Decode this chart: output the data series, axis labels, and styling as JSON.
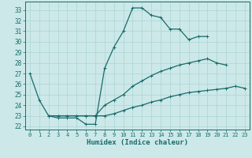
{
  "bg_color": "#cce8e8",
  "line_color": "#1a6b6b",
  "grid_color": "#aad4d4",
  "xlabel": "Humidex (Indice chaleur)",
  "xlim": [
    -0.5,
    23.5
  ],
  "ylim": [
    21.7,
    33.8
  ],
  "yticks": [
    22,
    23,
    24,
    25,
    26,
    27,
    28,
    29,
    30,
    31,
    32,
    33
  ],
  "xticks": [
    0,
    1,
    2,
    3,
    4,
    5,
    6,
    7,
    8,
    9,
    10,
    11,
    12,
    13,
    14,
    15,
    16,
    17,
    18,
    19,
    20,
    21,
    22,
    23
  ],
  "line1_x": [
    0,
    1,
    2,
    3,
    4,
    5,
    6,
    7,
    8,
    9,
    10,
    11,
    12,
    13,
    14,
    15,
    16,
    17,
    18,
    19
  ],
  "line1_y": [
    27.0,
    24.5,
    23.0,
    22.8,
    22.8,
    22.8,
    22.2,
    22.2,
    27.5,
    29.5,
    31.0,
    33.2,
    33.2,
    32.5,
    32.3,
    31.2,
    31.2,
    30.2,
    30.5,
    30.5
  ],
  "line2_x": [
    2,
    3,
    4,
    5,
    6,
    7,
    8,
    9,
    10,
    11,
    12,
    13,
    14,
    15,
    16,
    17,
    18,
    19,
    20,
    21,
    22,
    23
  ],
  "line2_y": [
    23.0,
    23.0,
    23.0,
    23.0,
    23.0,
    23.0,
    24.0,
    24.5,
    25.0,
    25.8,
    26.3,
    26.8,
    27.2,
    27.5,
    27.8,
    28.0,
    28.2,
    28.4,
    28.0,
    27.8,
    null,
    null
  ],
  "line3_x": [
    2,
    3,
    4,
    5,
    6,
    7,
    8,
    9,
    10,
    11,
    12,
    13,
    14,
    15,
    16,
    17,
    18,
    19,
    20,
    21,
    22,
    23
  ],
  "line3_y": [
    23.0,
    23.0,
    23.0,
    23.0,
    23.0,
    23.0,
    23.0,
    23.2,
    23.5,
    23.8,
    24.0,
    24.3,
    24.5,
    24.8,
    25.0,
    25.2,
    25.3,
    25.4,
    25.5,
    25.6,
    25.8,
    25.6
  ]
}
